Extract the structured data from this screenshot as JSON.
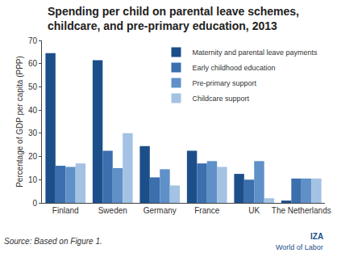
{
  "chart_data": {
    "type": "bar",
    "title": "Spending per child on parental leave schemes, childcare, and pre-primary education, 2013",
    "y_label": "Percentage of GDP per capita (PPP)",
    "categories": [
      "Finland",
      "Sweden",
      "Germany",
      "France",
      "UK",
      "The Netherlands"
    ],
    "series": [
      {
        "name": "Maternity and parental leave payments",
        "color": "#1c4f8a",
        "values": [
          64.5,
          61.5,
          24.5,
          22.5,
          12.5,
          1
        ]
      },
      {
        "name": "Early childhood education",
        "color": "#3b6fae",
        "values": [
          16,
          22.5,
          11,
          17,
          10,
          10.5
        ]
      },
      {
        "name": "Pre-primary support",
        "color": "#5f90c8",
        "values": [
          15.5,
          15,
          14.5,
          18,
          18,
          10.5
        ]
      },
      {
        "name": "Childcare support",
        "color": "#a4c2e3",
        "values": [
          17,
          30,
          7.5,
          15.5,
          2,
          10.5
        ]
      }
    ],
    "ylim": [
      0,
      70
    ],
    "yticks": [
      0,
      10,
      20,
      30,
      40,
      50,
      60,
      70
    ],
    "grid": false,
    "legend": "top right",
    "annotations": [
      "Source: Based on Figure 1.",
      "IZA",
      "World of Labor"
    ]
  }
}
